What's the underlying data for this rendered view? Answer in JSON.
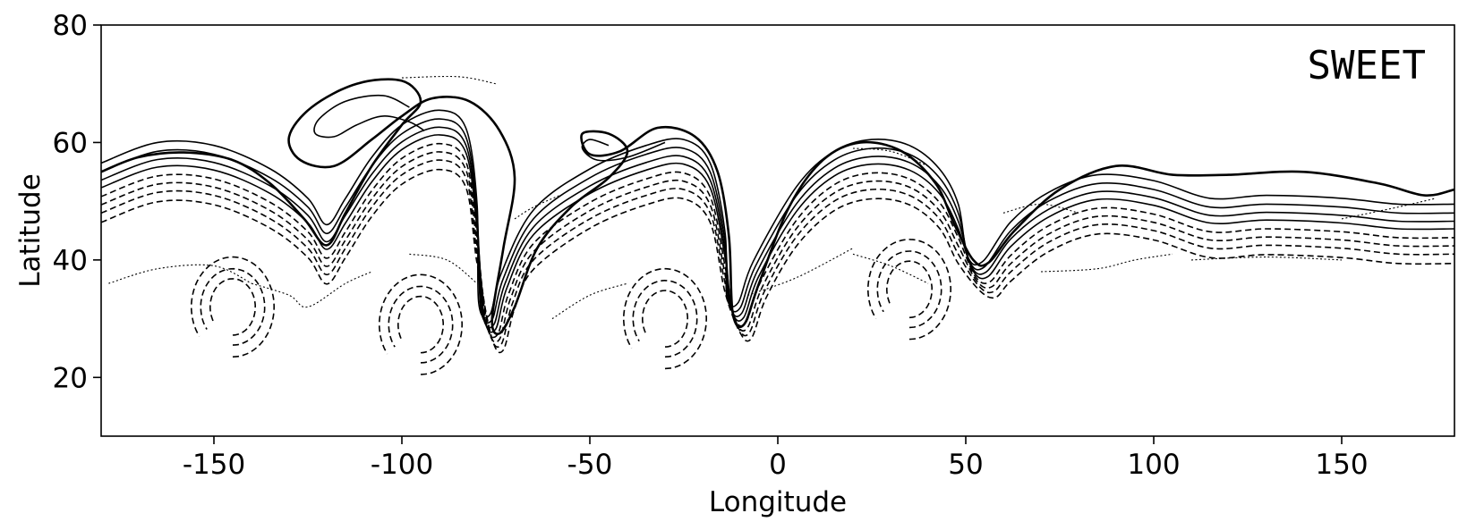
{
  "chart_data": {
    "type": "contour",
    "title": "",
    "annotation": "SWEET",
    "xlabel": "Longitude",
    "ylabel": "Latitude",
    "xlim": [
      -180,
      180
    ],
    "ylim": [
      10,
      80
    ],
    "xticks": [
      -150,
      -100,
      -50,
      0,
      50,
      100,
      150
    ],
    "yticks": [
      20,
      40,
      60,
      80
    ],
    "grid": false,
    "line_color": "#000000",
    "positive_contours": "solid",
    "negative_contours": "dashed",
    "troughs": [
      {
        "lon": -120,
        "lat": 42
      },
      {
        "lon": -78,
        "lat": 26
      },
      {
        "lon": -13,
        "lat": 28
      },
      {
        "lon": 53,
        "lat": 35
      }
    ],
    "ridges": [
      {
        "lon": -160,
        "lat": 58
      },
      {
        "lon": -100,
        "lat": 71
      },
      {
        "lon": -35,
        "lat": 63
      },
      {
        "lon": 22,
        "lat": 60
      },
      {
        "lon": 90,
        "lat": 56
      }
    ],
    "cyclones": [
      {
        "lon": -145,
        "lat": 32
      },
      {
        "lon": -95,
        "lat": 29
      },
      {
        "lon": -30,
        "lat": 30
      },
      {
        "lon": 35,
        "lat": 35
      }
    ]
  }
}
